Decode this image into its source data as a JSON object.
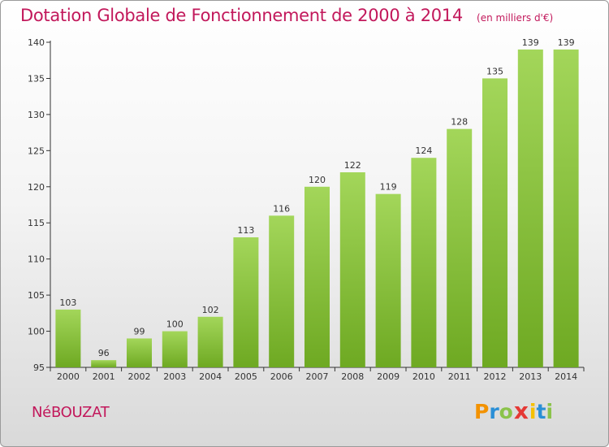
{
  "title": "Dotation Globale de Fonctionnement de 2000 à 2014",
  "subtitle": "(en milliers d'€)",
  "commune": "NéBOUZAT",
  "logo": {
    "letters": [
      "P",
      "r",
      "o",
      "x",
      "i",
      "t",
      "i"
    ],
    "colors": [
      "#f39200",
      "#2a8fd6",
      "#8bc34a",
      "#e53935",
      "#f6c000",
      "#2a8fd6",
      "#8bc34a"
    ]
  },
  "colors": {
    "title": "#c2185b",
    "bar_light": "#a3d65a",
    "bar_dark": "#6ea922",
    "axis": "#333333"
  },
  "chart_data": {
    "type": "bar",
    "categories": [
      "2000",
      "2001",
      "2002",
      "2003",
      "2004",
      "2005",
      "2006",
      "2007",
      "2008",
      "2009",
      "2010",
      "2011",
      "2012",
      "2013",
      "2014"
    ],
    "values": [
      103,
      96,
      99,
      100,
      102,
      113,
      116,
      120,
      122,
      119,
      124,
      128,
      135,
      139,
      139
    ],
    "y_ticks": [
      "95",
      "100",
      "105",
      "110",
      "115",
      "120",
      "125",
      "130",
      "135",
      "140"
    ],
    "ylim": [
      95,
      140
    ],
    "grid": false,
    "data_labels": true
  }
}
